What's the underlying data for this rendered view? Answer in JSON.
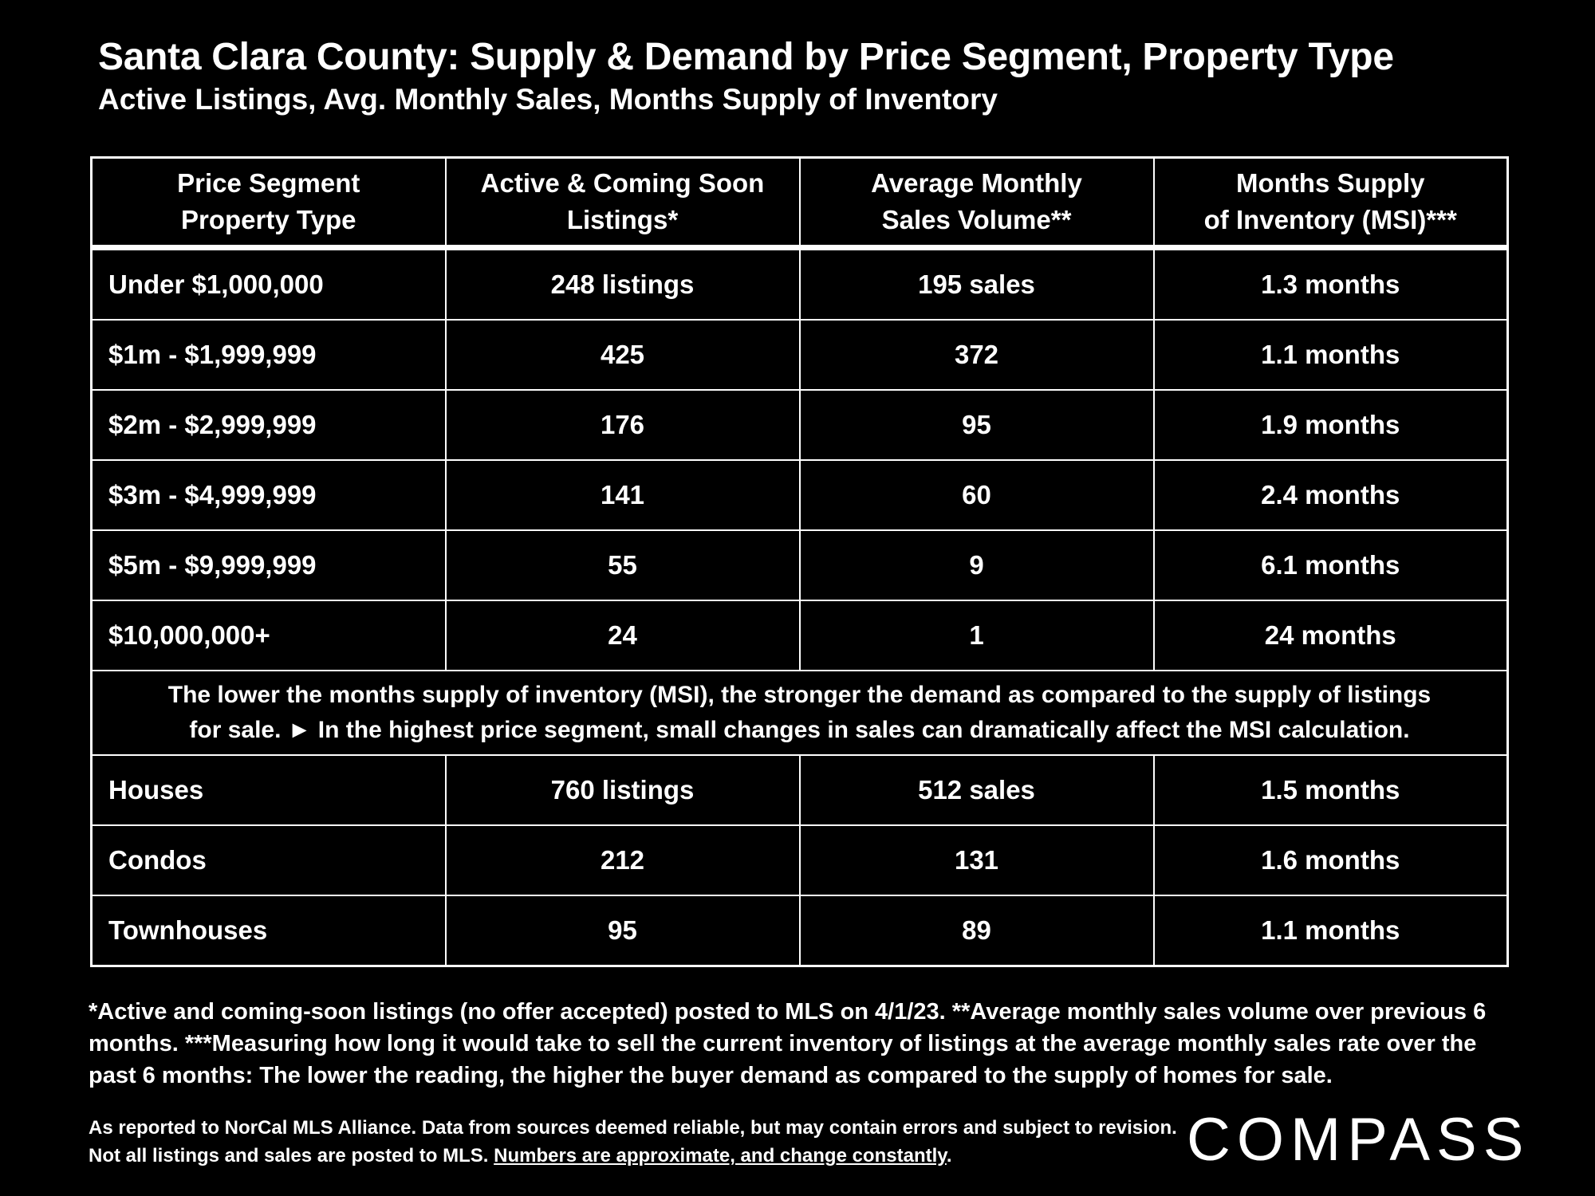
{
  "title": "Santa Clara County: Supply & Demand by Price Segment, Property Type",
  "subtitle": "Active Listings, Avg. Monthly Sales, Months Supply of Inventory",
  "table": {
    "headers": [
      [
        "Price Segment",
        "Property Type"
      ],
      [
        "Active & Coming Soon",
        "Listings*"
      ],
      [
        "Average Monthly",
        "Sales Volume**"
      ],
      [
        "Months Supply",
        "of Inventory (MSI)***"
      ]
    ],
    "price_rows": [
      [
        "Under $1,000,000",
        "248 listings",
        "195 sales",
        "1.3 months"
      ],
      [
        "$1m - $1,999,999",
        "425",
        "372",
        "1.1 months"
      ],
      [
        "$2m - $2,999,999",
        "176",
        "95",
        "1.9 months"
      ],
      [
        "$3m - $4,999,999",
        "141",
        "60",
        "2.4 months"
      ],
      [
        "$5m - $9,999,999",
        "55",
        "9",
        "6.1 months"
      ],
      [
        "$10,000,000+",
        "24",
        "1",
        "24 months"
      ]
    ],
    "note": [
      "The lower the months supply of inventory (MSI), the stronger the demand as compared to the supply of listings",
      "for sale. ► In the highest price segment, small changes in sales can dramatically affect the MSI calculation."
    ],
    "type_rows": [
      [
        "Houses",
        "760 listings",
        "512 sales",
        "1.5 months"
      ],
      [
        "Condos",
        "212",
        "131",
        "1.6 months"
      ],
      [
        "Townhouses",
        "95",
        "89",
        "1.1 months"
      ]
    ]
  },
  "footnote": "*Active and coming-soon listings (no offer accepted) posted to MLS on 4/1/23. **Average monthly sales volume over previous 6 months. ***Measuring how long it would take to sell the current inventory of listings at the average monthly sales rate over the past 6 months: The lower the reading, the higher the buyer demand as compared to the supply of homes for sale.",
  "source": {
    "text": "As reported to NorCal MLS Alliance. Data from sources deemed reliable, but may contain errors and subject to revision. Not all listings and sales are posted to MLS.",
    "underlined": "Numbers are approximate, and change constantly",
    "end": "."
  },
  "logo": "COMPASS"
}
